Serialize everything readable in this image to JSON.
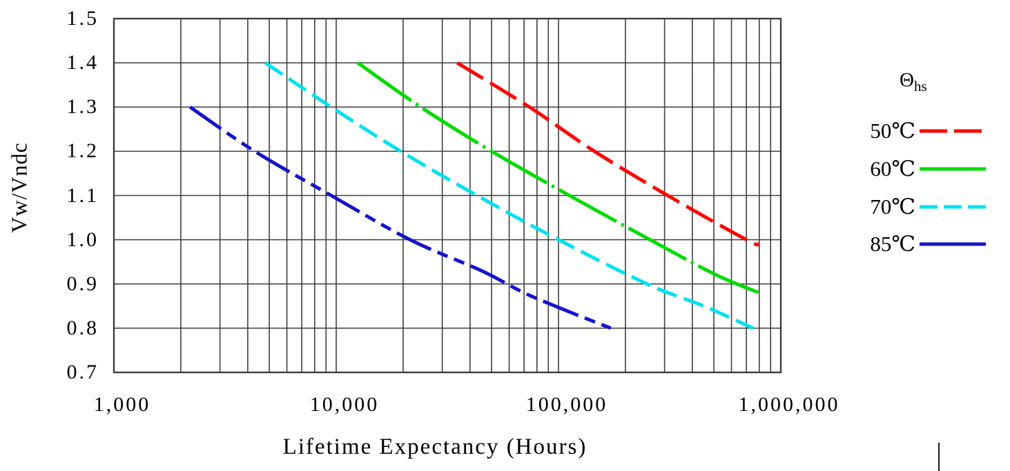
{
  "page": {
    "background": "#ffffff"
  },
  "chart_data": {
    "type": "line",
    "title": "",
    "x_axis": {
      "label": "Lifetime Expectancy (Hours)",
      "scale": "log",
      "min": 1000,
      "max": 1000000,
      "ticks": [
        {
          "value": 1000,
          "label": "1,000"
        },
        {
          "value": 10000,
          "label": "10,000"
        },
        {
          "value": 100000,
          "label": "100,000"
        },
        {
          "value": 1000000,
          "label": "1,000,000"
        }
      ]
    },
    "y_axis": {
      "label": "Vw/Vndc",
      "min": 0.7,
      "max": 1.5,
      "step": 0.1,
      "ticks": [
        {
          "value": 1.5,
          "label": "1.5"
        },
        {
          "value": 1.4,
          "label": "1.4"
        },
        {
          "value": 1.3,
          "label": "1.3"
        },
        {
          "value": 1.2,
          "label": "1.2"
        },
        {
          "value": 1.1,
          "label": "1.1"
        },
        {
          "value": 1.0,
          "label": "1.0"
        },
        {
          "value": 0.9,
          "label": "0.9"
        },
        {
          "value": 0.8,
          "label": "0.8"
        },
        {
          "value": 0.7,
          "label": "0.7"
        }
      ]
    },
    "grid": {
      "horizontal_major": true,
      "vertical_log_minor": true,
      "color": "#3d3d3d"
    },
    "legend": {
      "title": "Θ",
      "title_subscript": "hs",
      "position": "right"
    },
    "series": [
      {
        "name": "50℃",
        "temperature_c": 50,
        "color": "#ff0000",
        "line_dash": "44 12",
        "legend_dash": "40 10",
        "points": [
          [
            35000,
            1.4
          ],
          [
            74000,
            1.3
          ],
          [
            145000,
            1.2
          ],
          [
            310000,
            1.1
          ],
          [
            700000,
            1.0
          ],
          [
            800000,
            0.99
          ]
        ]
      },
      {
        "name": "60℃",
        "temperature_c": 60,
        "color": "#00dc00",
        "line_dash": "95 8 4 8",
        "legend_dash": "",
        "points": [
          [
            12500,
            1.4
          ],
          [
            24000,
            1.3
          ],
          [
            50000,
            1.2
          ],
          [
            112000,
            1.1
          ],
          [
            258000,
            1.0
          ],
          [
            514000,
            0.92
          ],
          [
            800000,
            0.88
          ]
        ]
      },
      {
        "name": "70℃",
        "temperature_c": 70,
        "color": "#00e1f0",
        "line_dash": "30 11",
        "legend_dash": "26 9",
        "points": [
          [
            4800,
            1.4
          ],
          [
            9500,
            1.3
          ],
          [
            19500,
            1.2
          ],
          [
            43000,
            1.1
          ],
          [
            100000,
            1.0
          ],
          [
            250000,
            0.9
          ],
          [
            450000,
            0.85
          ],
          [
            750000,
            0.8
          ]
        ]
      },
      {
        "name": "85℃",
        "temperature_c": 85,
        "color": "#1414cc",
        "line_dash": "55 10 16 10 16 10",
        "legend_dash": "",
        "points": [
          [
            2200,
            1.3
          ],
          [
            4300,
            1.2
          ],
          [
            9500,
            1.1
          ],
          [
            21500,
            1.0
          ],
          [
            45000,
            0.93
          ],
          [
            70000,
            0.88
          ],
          [
            108000,
            0.84
          ],
          [
            172000,
            0.8
          ]
        ]
      }
    ]
  }
}
